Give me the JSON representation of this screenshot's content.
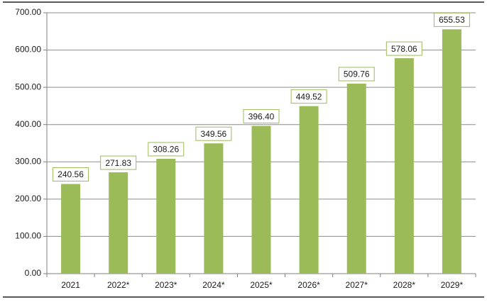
{
  "chart_data": {
    "type": "bar",
    "categories": [
      "2021",
      "2022*",
      "2023*",
      "2024*",
      "2025*",
      "2026*",
      "2027*",
      "2028*",
      "2029*"
    ],
    "values": [
      240.56,
      271.83,
      308.26,
      349.56,
      396.4,
      449.52,
      509.76,
      578.06,
      655.53
    ],
    "data_labels": [
      "240.56",
      "271.83",
      "308.26",
      "349.56",
      "396.40",
      "449.52",
      "509.76",
      "578.06",
      "655.53"
    ],
    "y_ticks": [
      "0.00",
      "100.00",
      "200.00",
      "300.00",
      "400.00",
      "500.00",
      "600.00",
      "700.00"
    ],
    "ylim": [
      0,
      700
    ],
    "grid": true,
    "legend": "none",
    "colors": {
      "bar": "#9bbb59",
      "label_border": "#9bbb59",
      "grid": "#8c8c8c"
    }
  }
}
